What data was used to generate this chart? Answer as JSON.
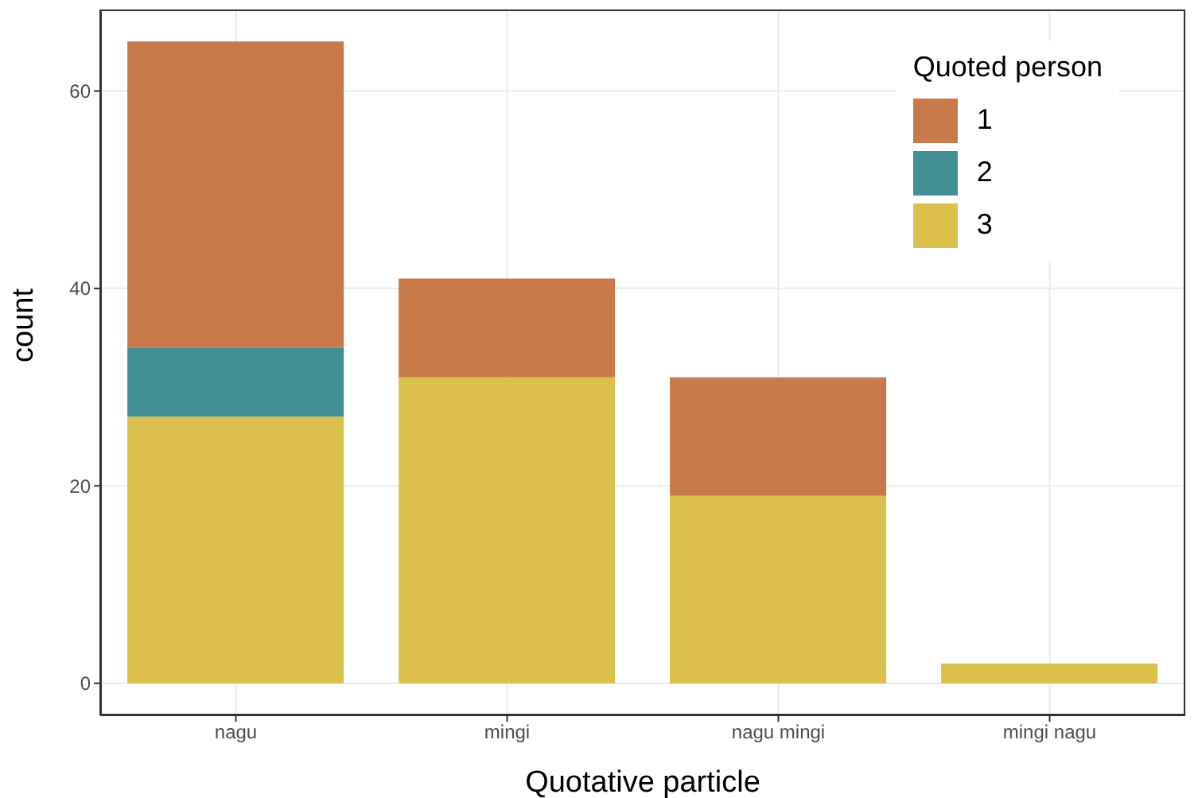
{
  "chart_data": {
    "type": "bar",
    "xlabel": "Quotative particle",
    "ylabel": "count",
    "legend_title": "Quoted person",
    "categories": [
      "nagu",
      "mingi",
      "nagu mingi",
      "mingi nagu"
    ],
    "series": [
      {
        "name": "3",
        "color": "#dbc04e",
        "values": [
          27,
          31,
          19,
          2
        ]
      },
      {
        "name": "2",
        "color": "#428f96",
        "values": [
          7,
          0,
          0,
          0
        ]
      },
      {
        "name": "1",
        "color": "#c87a4a",
        "values": [
          31,
          10,
          12,
          0
        ]
      }
    ],
    "stacked": true,
    "ylim": [
      -3.25,
      68.25
    ],
    "yticks": [
      0,
      20,
      40,
      60
    ],
    "grid": true,
    "legend": "top right"
  }
}
